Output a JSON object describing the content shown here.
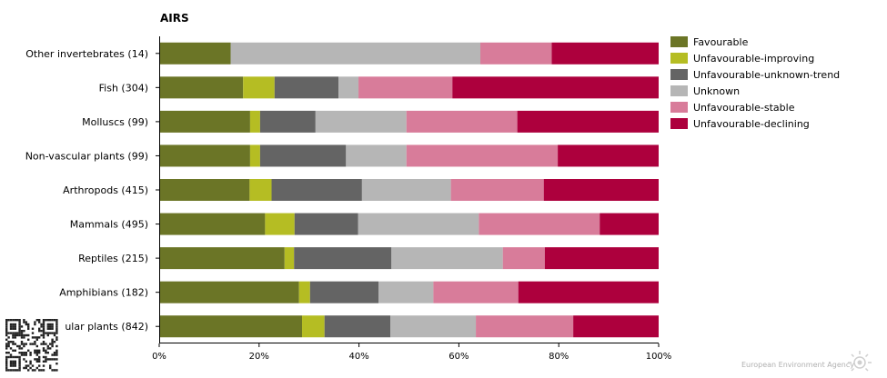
{
  "chart_data": {
    "type": "bar",
    "orientation": "horizontal",
    "stacked": true,
    "title": "AIRS",
    "xlabel": "",
    "ylabel": "",
    "xlim": [
      0,
      100
    ],
    "x_ticks": [
      "0%",
      "20%",
      "40%",
      "60%",
      "80%",
      "100%"
    ],
    "grid": false,
    "legend_position": "right",
    "categories": [
      "Other invertebrates (14)",
      "Fish (304)",
      "Molluscs (99)",
      "Non-vascular plants (99)",
      "Arthropods (415)",
      "Mammals (495)",
      "Reptiles (215)",
      "Amphibians (182)",
      "ular plants (842)"
    ],
    "series": [
      {
        "name": "Favourable",
        "color": "#6b7526",
        "values": [
          14.3,
          16.8,
          18.2,
          18.2,
          18.1,
          21.2,
          25.1,
          28.0,
          28.6
        ]
      },
      {
        "name": "Unfavourable-improving",
        "color": "#b5bd23",
        "values": [
          0.0,
          6.3,
          2.0,
          2.0,
          4.4,
          5.9,
          1.9,
          2.2,
          4.5
        ]
      },
      {
        "name": "Unfavourable-unknown-trend",
        "color": "#646464",
        "values": [
          0.0,
          12.8,
          11.1,
          17.2,
          18.1,
          12.7,
          19.5,
          13.7,
          13.2
        ]
      },
      {
        "name": "Unknown",
        "color": "#b6b6b6",
        "values": [
          50.0,
          4.0,
          18.2,
          12.1,
          17.8,
          24.2,
          22.3,
          11.0,
          17.1
        ]
      },
      {
        "name": "Unfavourable-stable",
        "color": "#d87c9a",
        "values": [
          14.3,
          18.8,
          22.2,
          30.3,
          18.6,
          24.2,
          8.4,
          17.0,
          19.5
        ]
      },
      {
        "name": "Unfavourable-declining",
        "color": "#ad003d",
        "values": [
          21.4,
          41.3,
          28.3,
          20.2,
          23.0,
          11.8,
          22.8,
          28.1,
          17.1
        ]
      }
    ]
  },
  "footer": {
    "source_label": "European Environment Agency"
  }
}
